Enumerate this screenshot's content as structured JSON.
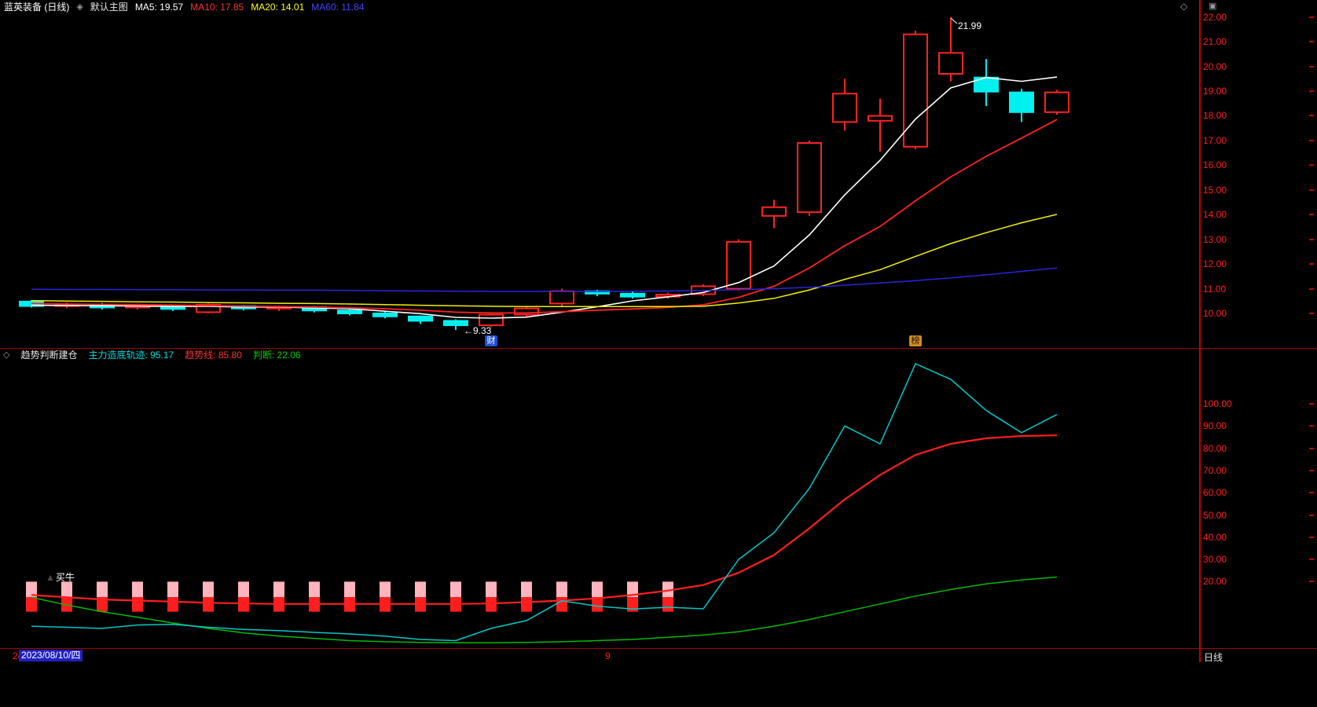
{
  "header": {
    "title": "蓝英装备 (日线)",
    "layout_icon": "◈",
    "layout_label": "默认主图",
    "ma_values": [
      {
        "label": "MA5: 19.57",
        "color": "#ffffff"
      },
      {
        "label": "MA10: 17.85",
        "color": "#ff3232"
      },
      {
        "label": "MA20: 14.01",
        "color": "#ffff00"
      },
      {
        "label": "MA60: 11.84",
        "color": "#4444ff"
      }
    ],
    "corner_icons": {
      "diamond": "◇",
      "window": "▣"
    }
  },
  "indicator_header": {
    "collapse_icon": "◇",
    "title": "趋势判断建仓",
    "values": [
      {
        "label": "主力造底轨迹: 95.17",
        "color": "#00dcdc"
      },
      {
        "label": "趋势线: 85.80",
        "color": "#ff3232"
      },
      {
        "label": "判断: 22.06",
        "color": "#00cc00"
      }
    ]
  },
  "annotations": {
    "high_label": "21.99",
    "low_label": "←9.33",
    "signal_triangle": "▲",
    "signal_label": "买牛",
    "event_badges": [
      {
        "text": "财",
        "index": 13,
        "bg": "#1e4fd8",
        "fg": "#ffffff"
      },
      {
        "text": "榜",
        "index": 25,
        "bg": "#d4881c",
        "fg": "#1a1a1a"
      }
    ]
  },
  "footer": {
    "left_partial": "2(",
    "selected_date": "2023/08/10/四",
    "mid_tick": "9",
    "period": "日线"
  },
  "colors": {
    "up": "#ff2222",
    "down": "#00f0f0",
    "axis_text": "#ff2020",
    "grid_line": "#a40000",
    "axis_line": "#c80000",
    "bar_pink": "#ffb4be",
    "bar_red": "#ff1e1e",
    "selected_date_bg": "#2020c0"
  },
  "chart_data": [
    {
      "type": "candlestick",
      "title": "蓝英装备 日线 主图",
      "ylim": [
        8.6,
        22.15
      ],
      "y_ticks": [
        22,
        21,
        20,
        19,
        18,
        17,
        16,
        15,
        14,
        13,
        12,
        11,
        10
      ],
      "x_start": 40,
      "x_step": 45,
      "body_width": 30,
      "candles_ochl": [
        [
          10.48,
          10.3,
          10.54,
          10.24
        ],
        [
          10.3,
          10.36,
          10.44,
          10.22
        ],
        [
          10.36,
          10.24,
          10.42,
          10.16
        ],
        [
          10.24,
          10.32,
          10.4,
          10.16
        ],
        [
          10.32,
          10.18,
          10.36,
          10.1
        ],
        [
          10.05,
          10.35,
          10.4,
          10.0
        ],
        [
          10.3,
          10.2,
          10.34,
          10.12
        ],
        [
          10.2,
          10.26,
          10.32,
          10.1
        ],
        [
          10.26,
          10.12,
          10.3,
          10.04
        ],
        [
          10.12,
          10.0,
          10.18,
          9.92
        ],
        [
          10.0,
          9.88,
          10.06,
          9.8
        ],
        [
          9.88,
          9.7,
          9.92,
          9.58
        ],
        [
          9.7,
          9.52,
          9.76,
          9.33
        ],
        [
          9.52,
          9.95,
          10.02,
          9.45
        ],
        [
          9.95,
          10.2,
          10.3,
          9.88
        ],
        [
          10.4,
          10.9,
          11.0,
          10.3
        ],
        [
          10.9,
          10.8,
          10.96,
          10.7
        ],
        [
          10.8,
          10.68,
          10.88,
          10.6
        ],
        [
          10.68,
          10.76,
          10.84,
          10.6
        ],
        [
          10.78,
          11.1,
          11.18,
          10.7
        ],
        [
          11.0,
          12.9,
          13.0,
          10.92
        ],
        [
          13.95,
          14.3,
          14.6,
          13.45
        ],
        [
          14.1,
          16.9,
          17.0,
          13.95
        ],
        [
          17.75,
          18.9,
          19.5,
          17.4
        ],
        [
          17.8,
          18.0,
          18.7,
          16.55
        ],
        [
          16.75,
          21.3,
          21.45,
          16.65
        ],
        [
          19.7,
          20.55,
          21.99,
          19.4
        ],
        [
          19.55,
          18.98,
          20.3,
          18.4
        ],
        [
          18.95,
          18.15,
          19.1,
          17.75
        ],
        [
          18.15,
          18.95,
          19.05,
          18.05
        ]
      ],
      "series": [
        {
          "name": "MA5",
          "color": "#ffffff",
          "width": 1.6,
          "values": [
            10.33,
            10.32,
            10.31,
            10.3,
            10.28,
            10.29,
            10.26,
            10.26,
            10.22,
            10.19,
            10.09,
            9.99,
            9.84,
            9.81,
            9.85,
            10.05,
            10.27,
            10.51,
            10.67,
            10.85,
            11.25,
            11.92,
            13.18,
            14.8,
            16.2,
            17.87,
            19.13,
            19.55,
            19.4,
            19.57
          ]
        },
        {
          "name": "MA10",
          "color": "#ff2222",
          "width": 1.8,
          "values": [
            10.4,
            10.38,
            10.37,
            10.36,
            10.34,
            10.32,
            10.3,
            10.28,
            10.26,
            10.23,
            10.19,
            10.13,
            10.05,
            10.02,
            10.02,
            10.07,
            10.13,
            10.18,
            10.24,
            10.35,
            10.65,
            11.1,
            11.84,
            12.74,
            13.52,
            14.56,
            15.53,
            16.36,
            17.1,
            17.85
          ]
        },
        {
          "name": "MA20",
          "color": "#f0f000",
          "width": 1.5,
          "values": [
            10.52,
            10.5,
            10.49,
            10.47,
            10.46,
            10.44,
            10.43,
            10.41,
            10.4,
            10.38,
            10.36,
            10.33,
            10.31,
            10.29,
            10.28,
            10.28,
            10.28,
            10.28,
            10.28,
            10.29,
            10.42,
            10.61,
            10.95,
            11.38,
            11.77,
            12.31,
            12.83,
            13.27,
            13.67,
            14.01
          ]
        },
        {
          "name": "MA60",
          "color": "#2626dc",
          "width": 1.5,
          "values": [
            10.98,
            10.97,
            10.97,
            10.96,
            10.96,
            10.95,
            10.95,
            10.94,
            10.94,
            10.93,
            10.92,
            10.91,
            10.9,
            10.89,
            10.89,
            10.89,
            10.89,
            10.9,
            10.91,
            10.93,
            10.96,
            11.0,
            11.06,
            11.14,
            11.23,
            11.33,
            11.44,
            11.56,
            11.7,
            11.84
          ]
        }
      ],
      "point_annotations": [
        {
          "kind": "high",
          "index": 26,
          "value": 21.99,
          "text": "21.99"
        },
        {
          "kind": "low",
          "index": 12,
          "value": 9.33,
          "text": "←9.33"
        }
      ]
    },
    {
      "type": "line",
      "title": "趋势判断建仓",
      "ylim": [
        -9.87,
        119.43
      ],
      "y_ticks": [
        100,
        90,
        80,
        70,
        60,
        50,
        40,
        30,
        20
      ],
      "x_start": 40,
      "x_step": 45,
      "series": [
        {
          "name": "判断",
          "color": "#00bb00",
          "width": 1.5,
          "values": [
            13.0,
            9.5,
            6.5,
            4.0,
            1.4,
            -1.0,
            -3.0,
            -4.5,
            -5.5,
            -6.5,
            -7.0,
            -7.3,
            -7.5,
            -7.5,
            -7.3,
            -7.0,
            -6.5,
            -6.0,
            -5.0,
            -4.0,
            -2.5,
            0.0,
            3.0,
            6.5,
            10.0,
            13.5,
            16.5,
            19.0,
            20.8,
            22.06
          ]
        },
        {
          "name": "趋势线",
          "color": "#ff1e1e",
          "width": 2.2,
          "values": [
            14.0,
            13.0,
            12.0,
            11.5,
            11.0,
            10.5,
            10.2,
            10.0,
            10.0,
            10.0,
            10.0,
            10.0,
            10.0,
            10.2,
            10.8,
            11.5,
            12.5,
            14.0,
            16.0,
            18.5,
            24.0,
            32.0,
            44.0,
            57.0,
            68.0,
            77.0,
            82.0,
            84.5,
            85.5,
            85.8
          ]
        },
        {
          "name": "主力造底轨迹",
          "color": "#00c8c8",
          "width": 1.5,
          "values": [
            0.0,
            -0.5,
            -1.0,
            0.5,
            0.8,
            -0.5,
            -1.5,
            -2.0,
            -2.8,
            -3.5,
            -4.5,
            -6.0,
            -6.5,
            -1.0,
            2.5,
            11.4,
            9.0,
            7.7,
            8.5,
            7.8,
            30.0,
            42.0,
            62.0,
            90.0,
            82.0,
            118.0,
            111.0,
            97.0,
            87.0,
            95.17
          ]
        }
      ],
      "signal_bars": {
        "indices": [
          0,
          1,
          2,
          3,
          4,
          5,
          6,
          7,
          8,
          9,
          10,
          11,
          12,
          13,
          14,
          15,
          16,
          17,
          18
        ],
        "top": 20,
        "mid": 13,
        "bottom": 6.5,
        "width": 14,
        "top_color": "#ffb4be",
        "bottom_color": "#ff1e1e"
      }
    }
  ]
}
